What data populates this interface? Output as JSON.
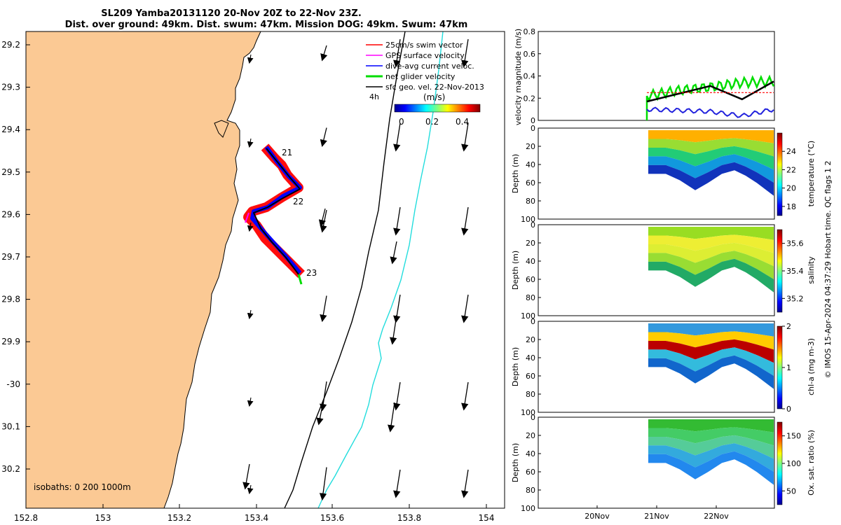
{
  "title_line1": "SL209 Yamba20131120 20-Nov 20Z to 22-Nov 23Z.",
  "title_line2": "Dist. over ground: 49km. Dist. swum: 47km. Mission DOG: 49km. Swum: 47km",
  "map": {
    "lon_ticks": [
      "152.8",
      "153",
      "153.2",
      "153.4",
      "153.6",
      "153.8",
      "154"
    ],
    "lat_ticks": [
      "29.2",
      "29.3",
      "29.4",
      "29.5",
      "29.6",
      "29.7",
      "29.8",
      "29.9",
      "-30",
      "30.1",
      "30.2"
    ],
    "isobaths_label": "isobaths: 0   200  1000m",
    "legend": [
      {
        "label": "25cm/s swim vector",
        "color": "#ff0000"
      },
      {
        "label": "GPS surface velocity",
        "color": "#ff00ff"
      },
      {
        "label": "dive-avg current veloc.",
        "color": "#0000ff"
      },
      {
        "label": "net glider velocity",
        "color": "#00dd00"
      },
      {
        "label": "sfc geo. vel. 22-Nov-2013",
        "color": "#000000"
      }
    ],
    "time_label": "4h",
    "colorbar_unit": "(m/s)",
    "colorbar_ticks": [
      "0",
      "0.2",
      "0.4"
    ],
    "day_labels": [
      "21",
      "22",
      "23"
    ],
    "land_color": "#fbc994",
    "track_color": "#ff0000"
  },
  "panels": {
    "velocity_ylabel": "velocity magnitude (m/s)",
    "velocity_yticks": [
      "0",
      "0.2",
      "0.4",
      "0.6",
      "0.8"
    ],
    "depth_ylabel": "Depth (m)",
    "depth_yticks": [
      "0",
      "20",
      "40",
      "60",
      "80",
      "100"
    ],
    "x_ticks": [
      "20Nov",
      "21Nov",
      "22Nov"
    ],
    "temp": {
      "label": "temperature (°C)",
      "ticks": [
        "18",
        "20",
        "22",
        "24"
      ]
    },
    "sal": {
      "label": "salinity",
      "ticks": [
        "35.2",
        "35.4",
        "35.6"
      ]
    },
    "chl": {
      "label": "chl-a (mg m-3)",
      "ticks": [
        "0",
        "1",
        "2"
      ]
    },
    "ox": {
      "label": "Ox. sat. ratio (%)",
      "ticks": [
        "50",
        "100",
        "150"
      ]
    },
    "credit": "© IMOS 15-Apr-2024 04:37:29 Hobart time. QC flags 1  2"
  },
  "chart_data": {
    "type": "line",
    "title": "SL209 Yamba20131120 20-Nov 20Z to 22-Nov 23Z.",
    "xlabel": "",
    "ylabel": "velocity magnitude (m/s)",
    "ylim": [
      0,
      0.8
    ],
    "x": [
      "21Nov 00h",
      "21Nov 12h",
      "22Nov 00h",
      "22Nov 12h",
      "23Nov 00h"
    ],
    "series": [
      {
        "name": "net glider velocity",
        "values": [
          0.22,
          0.27,
          0.3,
          0.34,
          0.35
        ]
      },
      {
        "name": "sfc geo. vel. 22-Nov-2013",
        "values": [
          0.17,
          0.24,
          0.31,
          0.19,
          0.35
        ]
      },
      {
        "name": "dive-avg current veloc.",
        "values": [
          0.1,
          0.09,
          0.08,
          0.04,
          0.1
        ]
      },
      {
        "name": "25cm/s swim vector",
        "values": [
          0.25,
          0.25,
          0.25,
          0.25,
          0.25
        ]
      }
    ]
  }
}
